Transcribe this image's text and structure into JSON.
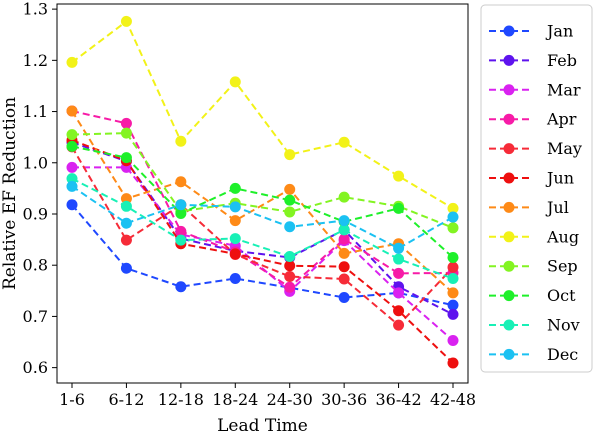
{
  "chart_data": {
    "type": "line",
    "title": "",
    "xlabel": "Lead Time",
    "ylabel": "Relative EF Reduction",
    "categories": [
      "1-6",
      "6-12",
      "12-18",
      "18-24",
      "24-30",
      "30-36",
      "36-42",
      "42-48"
    ],
    "ylim": [
      0.57,
      1.31
    ],
    "yticks": [
      "0.6",
      "0.7",
      "0.8",
      "0.9",
      "1.0",
      "1.1",
      "1.2",
      "1.3"
    ],
    "ytick_values": [
      0.6,
      0.7,
      0.8,
      0.9,
      1.0,
      1.1,
      1.2,
      1.3
    ],
    "grid": false,
    "legend_position": "right, outside plot",
    "line_style": "dashed with circle markers",
    "series": [
      {
        "name": "Jan",
        "color": "#1f48ff",
        "values": [
          0.918,
          0.794,
          0.758,
          0.774,
          0.756,
          0.737,
          0.746,
          0.722
        ]
      },
      {
        "name": "Feb",
        "color": "#5e13ee",
        "values": [
          1.04,
          1.003,
          0.852,
          0.828,
          0.815,
          0.869,
          0.758,
          0.704
        ]
      },
      {
        "name": "Mar",
        "color": "#d922f0",
        "values": [
          0.991,
          0.991,
          0.86,
          0.838,
          0.749,
          0.848,
          0.746,
          0.653
        ]
      },
      {
        "name": "Apr",
        "color": "#f71ba7",
        "values": [
          1.101,
          1.077,
          0.866,
          0.826,
          0.757,
          0.851,
          0.784,
          0.785
        ]
      },
      {
        "name": "May",
        "color": "#f62b38",
        "values": [
          1.031,
          0.849,
          0.918,
          0.821,
          0.778,
          0.773,
          0.683,
          0.796
        ]
      },
      {
        "name": "Jun",
        "color": "#ee0f0f",
        "values": [
          1.044,
          1.004,
          0.842,
          0.822,
          0.799,
          0.797,
          0.711,
          0.609
        ]
      },
      {
        "name": "Jul",
        "color": "#fe8a17",
        "values": [
          1.101,
          0.93,
          0.963,
          0.887,
          0.948,
          0.823,
          0.842,
          0.746
        ]
      },
      {
        "name": "Aug",
        "color": "#f2f218",
        "values": [
          1.196,
          1.276,
          1.042,
          1.158,
          1.016,
          1.04,
          0.974,
          0.911
        ]
      },
      {
        "name": "Sep",
        "color": "#83f422",
        "values": [
          1.055,
          1.058,
          0.905,
          0.921,
          0.904,
          0.933,
          0.915,
          0.873
        ]
      },
      {
        "name": "Oct",
        "color": "#1ef02a",
        "values": [
          1.032,
          1.01,
          0.901,
          0.95,
          0.927,
          0.885,
          0.911,
          0.815
        ]
      },
      {
        "name": "Nov",
        "color": "#18f0b6",
        "values": [
          0.969,
          0.915,
          0.849,
          0.852,
          0.817,
          0.869,
          0.812,
          0.774
        ]
      },
      {
        "name": "Dec",
        "color": "#1bc1f2",
        "values": [
          0.954,
          0.882,
          0.918,
          0.914,
          0.875,
          0.887,
          0.833,
          0.894
        ]
      }
    ]
  }
}
